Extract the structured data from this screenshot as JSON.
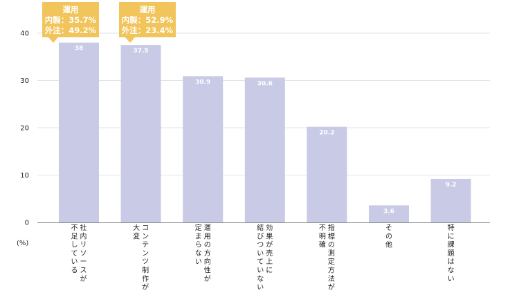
{
  "chart_data": {
    "type": "bar",
    "categories": [
      [
        "社",
        "内",
        "リ",
        "ソ",
        "ー",
        "ス",
        "が",
        "不",
        "足",
        "し",
        "て",
        "い",
        "る"
      ],
      [
        "コ",
        "ン",
        "テ",
        "ン",
        "ツ",
        "制",
        "作",
        "が",
        "大",
        "変"
      ],
      [
        "運",
        "用",
        "の",
        "方",
        "向",
        "性",
        "が",
        "定",
        "ま",
        "ら",
        "な",
        "い"
      ],
      [
        "効",
        "果",
        "が",
        "売",
        "上",
        "に",
        "結",
        "び",
        "つ",
        "い",
        "て",
        "い",
        "な",
        "い"
      ],
      [
        "指",
        "標",
        "の",
        "測",
        "定",
        "方",
        "法",
        "が",
        "不",
        "明",
        "確"
      ],
      [
        "そ",
        "の",
        "他"
      ],
      [
        "特",
        "に",
        "課",
        "題",
        "は",
        "な",
        "い"
      ]
    ],
    "category_columns": [
      [
        7,
        13
      ],
      [
        8,
        10
      ],
      [
        7,
        12
      ],
      [
        6,
        14
      ],
      [
        8,
        11
      ],
      [
        3,
        3
      ],
      [
        7,
        7
      ]
    ],
    "values": [
      38,
      37.5,
      30.9,
      30.6,
      20.2,
      3.6,
      9.2
    ],
    "value_labels": [
      "38",
      "37.5",
      "30.9",
      "30.6",
      "20.2",
      "3.6",
      "9.2"
    ],
    "yticks": [
      0,
      10,
      20,
      30,
      40
    ],
    "ylim": [
      0,
      40
    ],
    "grid": true,
    "bar_color": "#c8cae6",
    "y_unit": "(%)"
  },
  "callouts": [
    {
      "title": "運用",
      "line1": "内製：35.7%",
      "line2": "外注：49.2%"
    },
    {
      "title": "運用",
      "line1": "内製：52.9%",
      "line2": "外注：23.4%"
    }
  ],
  "colors": {
    "callout": "#f2c45c",
    "grid": "#e3e3e3",
    "axis": "#888888"
  }
}
